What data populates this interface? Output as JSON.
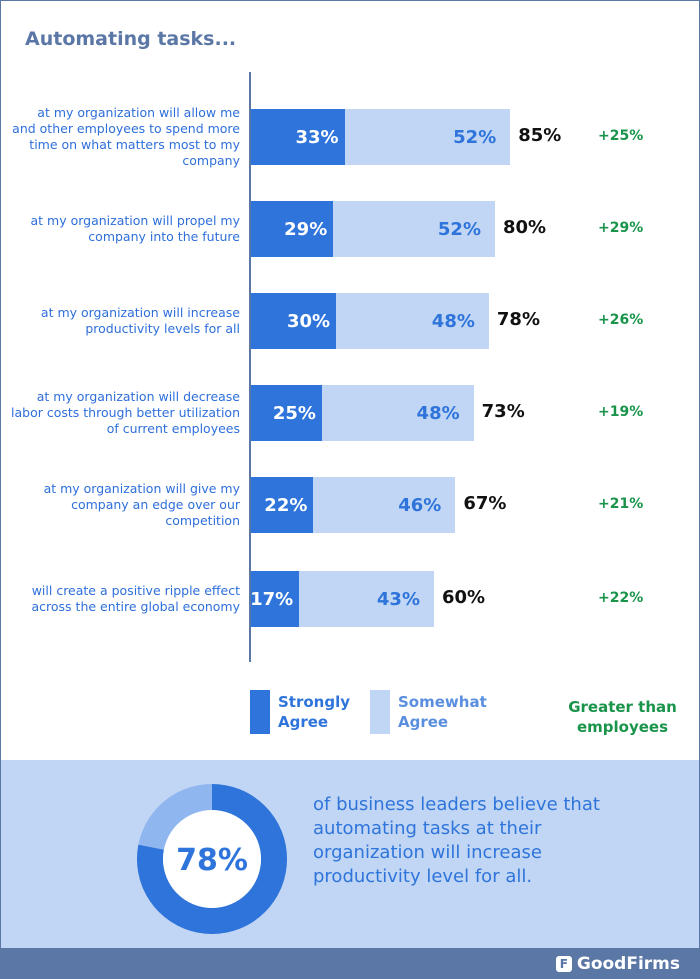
{
  "chart_data": {
    "type": "bar",
    "orientation": "horizontal",
    "stacked": true,
    "title": "Automating tasks...",
    "categories": [
      "at my organization will allow me and other employees to spend more time on what matters most to my company",
      "at my organization will propel my company into the future",
      "at my organization will increase productivity levels for all",
      "at my organization will decrease labor costs through better utilization of current employees",
      "at my organization will give my company an edge over our competition",
      "will create a positive ripple effect across the entire global economy"
    ],
    "series": [
      {
        "name": "Strongly Agree",
        "color": "#2e74db",
        "values": [
          33,
          29,
          30,
          25,
          22,
          17
        ]
      },
      {
        "name": "Somewhat Agree",
        "color": "#c0d6f4",
        "values": [
          52,
          52,
          48,
          48,
          46,
          43
        ]
      }
    ],
    "totals": [
      85,
      80,
      78,
      73,
      67,
      60
    ],
    "difference": {
      "name": "Greater than employees",
      "color": "#19944a",
      "values": [
        "+25%",
        "+29%",
        "+26%",
        "+19%",
        "+21%",
        "+22%"
      ]
    },
    "legend_placement": "bottom",
    "grid": false
  },
  "callout": {
    "value": 78,
    "value_label": "78%",
    "text": "of business leaders believe that automating tasks at their organization will increase productivity level for all.",
    "colors": {
      "filled": "#2e74db",
      "rest": "#8fb6ee"
    }
  },
  "footer": {
    "brand": "GoodFirms"
  }
}
